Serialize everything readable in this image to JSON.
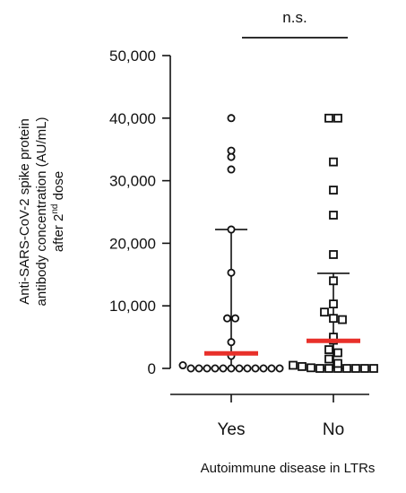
{
  "chart_data": {
    "type": "scatter",
    "subtype": "dot-plot",
    "categories": [
      "Yes",
      "No"
    ],
    "xlabel": "Autoimmune disease in LTRs",
    "ylabel": {
      "line1": "Anti-SARS-CoV-2 spike protein",
      "line2": "antibody concentration (AU/mL)",
      "line3_prefix": "after 2",
      "line3_sup": "nd",
      "line3_suffix": " dose"
    },
    "ylim": [
      0,
      50000
    ],
    "yticks": [
      0,
      10000,
      20000,
      30000,
      40000,
      50000
    ],
    "ytick_labels": [
      "0",
      "10,000",
      "20,000",
      "30,000",
      "40,000",
      "50,000"
    ],
    "grid": false,
    "legend": "none",
    "significance": {
      "label": "n.s.",
      "from": "Yes",
      "to": "No"
    },
    "series": [
      {
        "category": "Yes",
        "marker": "circle",
        "values": [
          40000,
          34800,
          33800,
          31800,
          22200,
          15300,
          8000,
          8000,
          4200,
          2000,
          500,
          0,
          0,
          0,
          0,
          0,
          0,
          0,
          0,
          0,
          0,
          0,
          0
        ],
        "median": 2400,
        "whisker_low": 0,
        "whisker_high": 22200
      },
      {
        "category": "No",
        "marker": "square",
        "values": [
          40000,
          40000,
          33000,
          28500,
          24500,
          18200,
          14000,
          10300,
          9000,
          8000,
          7800,
          5000,
          4500,
          3000,
          2500,
          1500,
          800,
          500,
          300,
          100,
          0,
          0,
          0,
          0,
          0,
          0,
          0
        ],
        "median": 4400,
        "whisker_low": 0,
        "whisker_high": 15200
      }
    ],
    "colors": {
      "median_line": "#e8302a",
      "axis": "#111111",
      "marker_stroke": "#111111",
      "marker_fill": "#ffffff"
    }
  }
}
